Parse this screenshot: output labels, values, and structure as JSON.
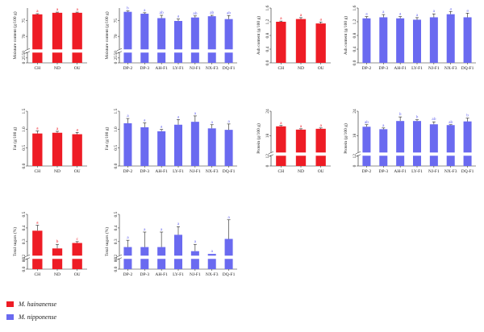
{
  "legend": [
    {
      "name": "M. hainanense",
      "color": "#ee1c25"
    },
    {
      "name": "M. nipponense",
      "color": "#6a6af0"
    }
  ],
  "chart_data": [
    {
      "type": "bar",
      "ylabel": "Moisture content (g/100 g)",
      "categories": [
        "CH",
        "ND",
        "OU"
      ],
      "series": [
        {
          "name": "M. hainanense",
          "color": "#ee1c25",
          "values": [
            77.0,
            77.5,
            77.5
          ],
          "errors": [
            0.2,
            0.2,
            0.2
          ]
        }
      ],
      "letters": [
        "a",
        "a",
        "a"
      ],
      "ylim": [
        0,
        79
      ],
      "yticks_top": [
        70,
        75
      ],
      "yticks_bottom": [
        0,
        25,
        50
      ],
      "ybreak": [
        50,
        66
      ]
    },
    {
      "type": "bar",
      "ylabel": "Moisture content (g/100 g)",
      "categories": [
        "DP-2",
        "DP-3",
        "AH-F1",
        "LY-F1",
        "NJ-F1",
        "NX-F3",
        "DQ-F1"
      ],
      "series": [
        {
          "name": "M. nipponense",
          "color": "#6a6af0",
          "values": [
            77.8,
            77.2,
            75.8,
            74.9,
            76.0,
            76.4,
            75.5
          ],
          "errors": [
            0.3,
            0.3,
            0.9,
            0.6,
            0.5,
            0.3,
            1.1
          ]
        }
      ],
      "letters": [
        "b",
        "a",
        "ab",
        "a",
        "ab",
        "ab",
        "ab"
      ],
      "ylim": [
        0,
        79
      ],
      "yticks_top": [
        70,
        75
      ],
      "yticks_bottom": [
        0,
        25,
        50
      ],
      "ybreak": [
        50,
        66
      ]
    },
    {
      "type": "bar",
      "ylabel": "Ash content (g/100 g)",
      "categories": [
        "CH",
        "ND",
        "OU"
      ],
      "series": [
        {
          "name": "M. hainanense",
          "color": "#ee1c25",
          "values": [
            1.2,
            1.28,
            1.15
          ],
          "errors": [
            0.02,
            0.04,
            0.04
          ]
        }
      ],
      "letters": [
        "a",
        "a",
        "a"
      ],
      "ylim": [
        0,
        1.6
      ],
      "yticks": [
        0.0,
        0.4,
        0.8,
        1.2,
        1.6
      ]
    },
    {
      "type": "bar",
      "ylabel": "Ash content (g/100 g)",
      "categories": [
        "DP-2",
        "DP-3",
        "AH-F1",
        "LY-F1",
        "NJ-F1",
        "NX-F3",
        "DQ-F1"
      ],
      "series": [
        {
          "name": "M. nipponense",
          "color": "#6a6af0",
          "values": [
            1.3,
            1.33,
            1.3,
            1.26,
            1.33,
            1.42,
            1.33
          ],
          "errors": [
            0.05,
            0.08,
            0.05,
            0.06,
            0.1,
            0.08,
            0.12
          ]
        }
      ],
      "letters": [
        "a",
        "a",
        "a",
        "a",
        "a",
        "a",
        "a"
      ],
      "ylim": [
        0,
        1.6
      ],
      "yticks": [
        0.0,
        0.4,
        0.8,
        1.2,
        1.6
      ]
    },
    {
      "type": "bar",
      "ylabel": "Fat (g/100 g)",
      "categories": [
        "CH",
        "ND",
        "OU"
      ],
      "series": [
        {
          "name": "M. hainanense",
          "color": "#ee1c25",
          "values": [
            0.89,
            0.91,
            0.87
          ],
          "errors": [
            0.07,
            0.04,
            0.05
          ]
        }
      ],
      "letters": [
        "a",
        "a",
        "a"
      ],
      "ylim": [
        0,
        1.5
      ],
      "yticks": [
        0.0,
        0.5,
        1.0,
        1.5
      ]
    },
    {
      "type": "bar",
      "ylabel": "Fat (g/100 g)",
      "categories": [
        "DP-2",
        "DP-3",
        "AH-F1",
        "LY-F1",
        "NJ-F1",
        "NX-F3",
        "DQ-F1"
      ],
      "series": [
        {
          "name": "M. nipponense",
          "color": "#6a6af0",
          "values": [
            1.17,
            1.06,
            0.95,
            1.13,
            1.21,
            1.03,
            0.99
          ],
          "errors": [
            0.13,
            0.12,
            0.05,
            0.14,
            0.16,
            0.1,
            0.16
          ]
        }
      ],
      "letters": [
        "a",
        "a",
        "a",
        "a",
        "a",
        "a",
        "a"
      ],
      "ylim": [
        0,
        1.5
      ],
      "yticks": [
        0.0,
        0.5,
        1.0,
        1.5
      ]
    },
    {
      "type": "bar",
      "ylabel": "Protein (g/100 g)",
      "categories": [
        "CH",
        "ND",
        "OU"
      ],
      "series": [
        {
          "name": "M. hainanense",
          "color": "#ee1c25",
          "values": [
            20.3,
            19.5,
            19.7
          ],
          "errors": [
            0.2,
            0.2,
            0.2
          ]
        }
      ],
      "letters": [
        "a",
        "a",
        "a"
      ],
      "ylim": [
        0,
        24
      ],
      "yticks_top": [
        18,
        24
      ],
      "yticks_bottom": [
        0,
        12
      ],
      "ybreak": [
        12,
        14
      ]
    },
    {
      "type": "bar",
      "ylabel": "Protein (g/100 g)",
      "categories": [
        "DP-2",
        "DP-3",
        "AH-F1",
        "LY-F1",
        "NJ-F1",
        "NX-F3",
        "DQ-F1"
      ],
      "series": [
        {
          "name": "M. nipponense",
          "color": "#6a6af0",
          "values": [
            20.2,
            19.6,
            21.6,
            21.6,
            20.8,
            20.6,
            21.5
          ],
          "errors": [
            0.5,
            0.3,
            1.0,
            0.3,
            0.6,
            0.1,
            0.8
          ]
        }
      ],
      "letters": [
        "ab",
        "a",
        "b",
        "b",
        "ab",
        "ab",
        "b"
      ],
      "ylim": [
        0,
        24
      ],
      "yticks_top": [
        18,
        24
      ],
      "yticks_bottom": [
        0,
        12
      ],
      "ybreak": [
        12,
        14
      ]
    },
    {
      "type": "bar",
      "ylabel": "Total sugars (%)",
      "categories": [
        "CH",
        "ND",
        "OU"
      ],
      "series": [
        {
          "name": "M. hainanense",
          "color": "#ee1c25",
          "values": [
            0.38,
            0.25,
            0.29
          ],
          "errors": [
            0.04,
            0.03,
            0.01
          ]
        }
      ],
      "letters": [
        "a",
        "b",
        "c"
      ],
      "ylim": [
        0,
        0.5
      ],
      "yticks_top": [
        0.2,
        0.3,
        0.4,
        0.5
      ],
      "yticks_bottom": [
        0.0,
        0.1
      ],
      "ybreak": [
        0.1,
        0.2
      ]
    },
    {
      "type": "bar",
      "ylabel": "Total sugars (%)",
      "categories": [
        "DP-2",
        "DP-3",
        "AH-F1",
        "LY-F1",
        "NJ-F1",
        "NX-F3",
        "DQ-F1"
      ],
      "series": [
        {
          "name": "M. nipponense",
          "color": "#6a6af0",
          "values": [
            0.26,
            0.26,
            0.26,
            0.35,
            0.23,
            0.21,
            0.32
          ],
          "errors": [
            0.05,
            0.11,
            0.11,
            0.06,
            0.05,
            0.0,
            0.14
          ]
        }
      ],
      "letters": [
        "a",
        "a",
        "a",
        "a",
        "a",
        "a",
        "a"
      ],
      "ylim": [
        0,
        0.5
      ],
      "yticks_top": [
        0.2,
        0.3,
        0.4,
        0.5
      ],
      "yticks_bottom": [
        0.0,
        0.1
      ],
      "ybreak": [
        0.1,
        0.2
      ]
    }
  ]
}
